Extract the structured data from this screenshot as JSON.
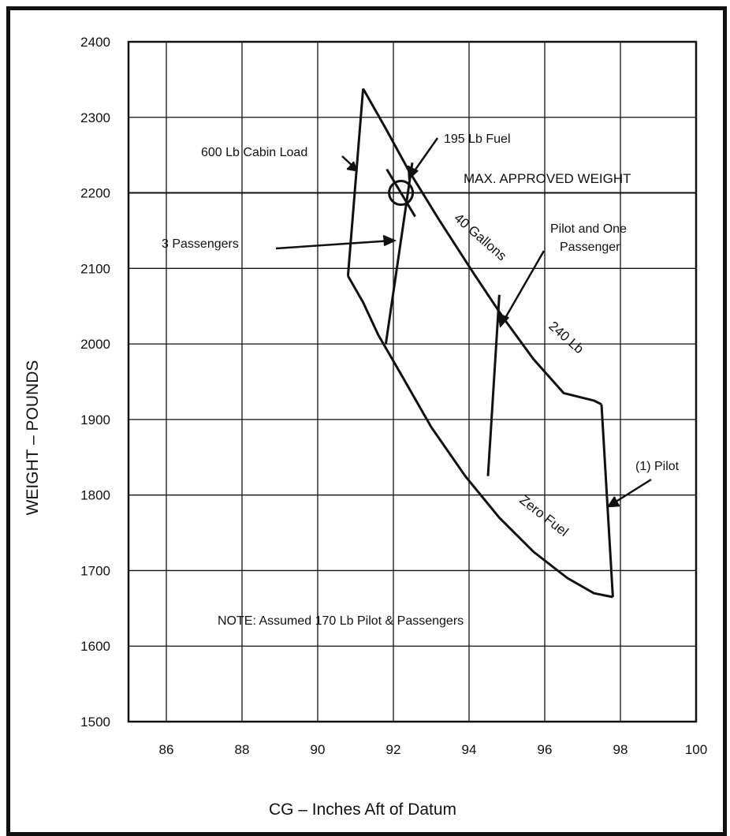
{
  "chart_data": {
    "type": "line",
    "title": "",
    "xlabel": "CG – Inches Aft of Datum",
    "ylabel": "WEIGHT – POUNDS",
    "xlim": [
      85,
      100
    ],
    "ylim": [
      1500,
      2400
    ],
    "xticks": [
      "86",
      "88",
      "90",
      "92",
      "94",
      "96",
      "98",
      "100"
    ],
    "yticks": [
      "1500",
      "1600",
      "1700",
      "1800",
      "1900",
      "2000",
      "2100",
      "2200",
      "2300",
      "2400"
    ],
    "grid": true,
    "max_weight": {
      "label": "MAX. APPROVED WEIGHT",
      "y": 2200
    },
    "series": [
      {
        "name": "",
        "x": [
          90.8,
          91.2,
          91.6,
          92.2,
          93.0,
          93.9,
          94.8,
          95.7,
          96.6,
          97.3,
          97.8
        ],
        "y": [
          2090,
          2055,
          2012,
          1960,
          1890,
          1825,
          1770,
          1725,
          1690,
          1670,
          1665
        ]
      },
      {
        "name": "",
        "x": [
          91.2,
          91.8,
          92.4,
          93.2,
          94.1,
          94.9,
          95.7,
          96.5,
          97.3,
          97.5
        ],
        "y": [
          2338,
          2285,
          2230,
          2165,
          2095,
          2035,
          1980,
          1935,
          1925,
          1920
        ]
      },
      {
        "name": "",
        "x": [
          90.8,
          91.2
        ],
        "y": [
          2090,
          2338
        ]
      },
      {
        "name": "",
        "x": [
          97.5,
          97.8
        ],
        "y": [
          1920,
          1665
        ]
      },
      {
        "name": "",
        "x": [
          91.8,
          92.5
        ],
        "y": [
          2000,
          2240
        ]
      },
      {
        "name": "",
        "x": [
          94.5,
          94.8
        ],
        "y": [
          1825,
          2065
        ]
      }
    ],
    "point": {
      "x": 92.2,
      "y": 2200
    },
    "labels": {
      "cabin_load": "600 Lb Cabin Load",
      "fuel": "195 Lb  Fuel",
      "gallons": "40 Gallons",
      "pounds": "240 Lb",
      "passengers": "3 Passengers",
      "pilot_one_line1": "Pilot and One",
      "pilot_one_line2": "Passenger",
      "pilot": "(1) Pilot",
      "zero_fuel": "Zero Fuel",
      "note": "NOTE: Assumed 170 Lb Pilot & Passengers"
    }
  }
}
